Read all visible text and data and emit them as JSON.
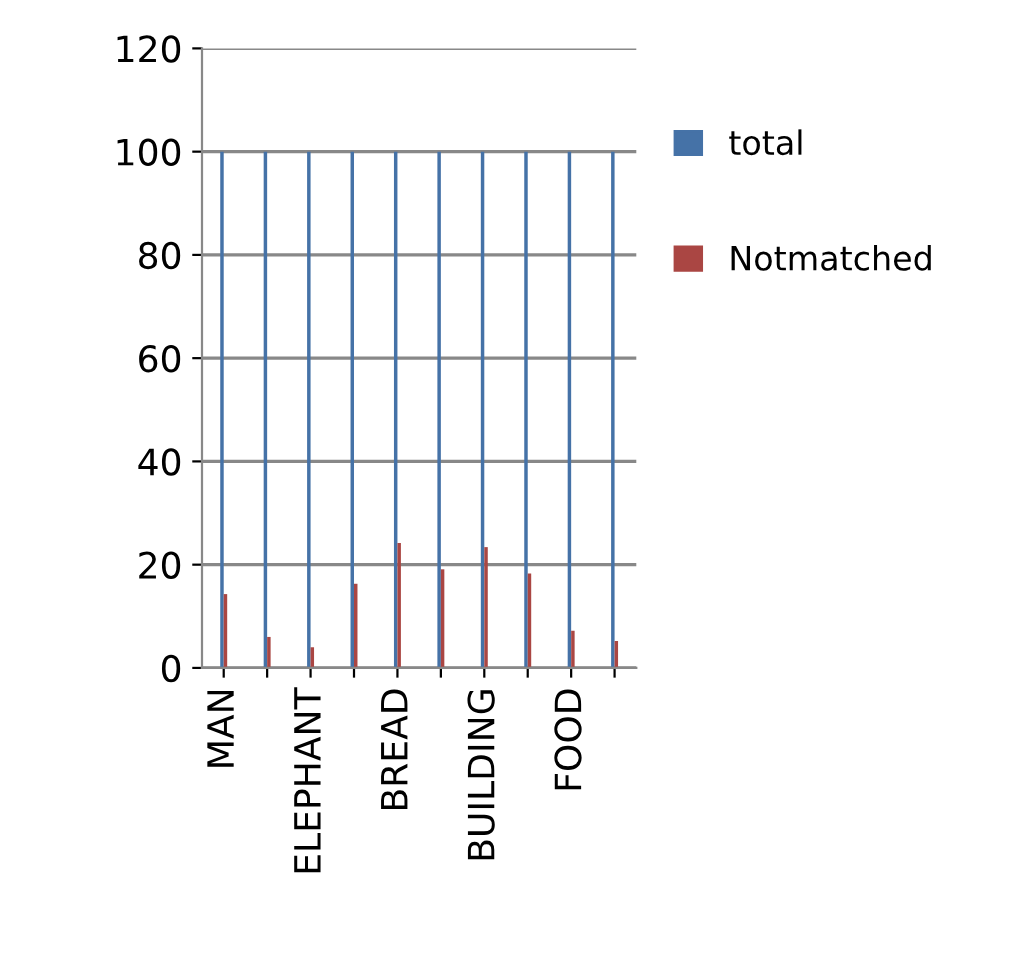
{
  "chart_data": {
    "type": "bar",
    "categories": [
      "MAN",
      null,
      "ELEPHANT",
      null,
      "BREAD",
      null,
      "BUILDING",
      null,
      "FOOD",
      null
    ],
    "series": [
      {
        "name": "total",
        "color": "#4572a7",
        "values": [
          100,
          100,
          100,
          100,
          100,
          100,
          100,
          100,
          100,
          100
        ]
      },
      {
        "name": "Notmatched",
        "color": "#aa4643",
        "values": [
          14.3,
          6,
          4,
          16.3,
          24.2,
          19.1,
          23.4,
          18.3,
          7.2,
          5.2
        ]
      }
    ],
    "ylim": [
      0,
      120
    ],
    "yticks": [
      0,
      20,
      40,
      60,
      80,
      100,
      120
    ],
    "grid": "y",
    "legend": "right"
  }
}
